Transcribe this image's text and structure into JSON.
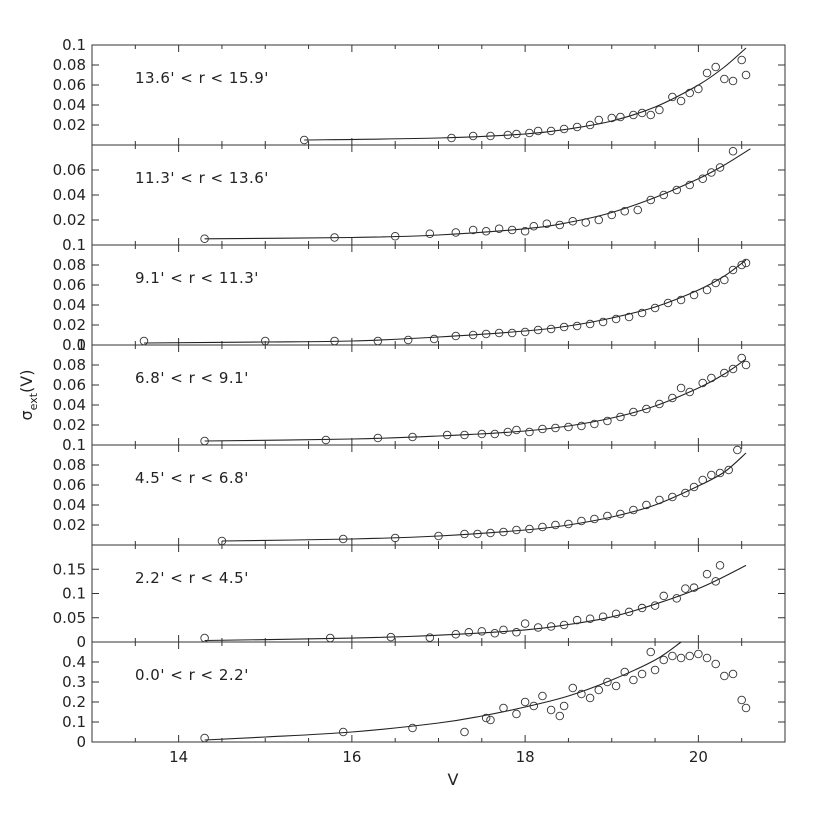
{
  "chart_data": {
    "type": "scatter",
    "xlabel": "V",
    "ylabel": "σ_ext(V)",
    "ylabel_main": "σ",
    "ylabel_sub": "ext",
    "ylabel_tail": "(V)",
    "xlim": [
      13,
      21
    ],
    "xticks": [
      14,
      16,
      18,
      20
    ],
    "panels": [
      {
        "label": "13.6' < r < 15.9'",
        "ylim": [
          0,
          0.1
        ],
        "yticks": [
          0.02,
          0.04,
          0.06,
          0.08,
          0.1
        ],
        "ytick_labels": [
          "0.02",
          "0.04",
          "0.06",
          "0.08",
          "0.1"
        ],
        "curve": [
          [
            15.45,
            0.005
          ],
          [
            17,
            0.007
          ],
          [
            18,
            0.011
          ],
          [
            18.5,
            0.016
          ],
          [
            19,
            0.024
          ],
          [
            19.5,
            0.038
          ],
          [
            20,
            0.06
          ],
          [
            20.3,
            0.078
          ],
          [
            20.55,
            0.097
          ]
        ],
        "points": [
          [
            15.45,
            0.005
          ],
          [
            17.15,
            0.007
          ],
          [
            17.4,
            0.009
          ],
          [
            17.6,
            0.009
          ],
          [
            17.8,
            0.01
          ],
          [
            17.9,
            0.011
          ],
          [
            18.05,
            0.012
          ],
          [
            18.15,
            0.014
          ],
          [
            18.3,
            0.014
          ],
          [
            18.45,
            0.016
          ],
          [
            18.6,
            0.018
          ],
          [
            18.75,
            0.02
          ],
          [
            18.85,
            0.025
          ],
          [
            19.0,
            0.027
          ],
          [
            19.1,
            0.028
          ],
          [
            19.25,
            0.03
          ],
          [
            19.35,
            0.032
          ],
          [
            19.45,
            0.03
          ],
          [
            19.55,
            0.035
          ],
          [
            19.7,
            0.048
          ],
          [
            19.8,
            0.044
          ],
          [
            19.9,
            0.052
          ],
          [
            20.0,
            0.056
          ],
          [
            20.1,
            0.072
          ],
          [
            20.2,
            0.078
          ],
          [
            20.3,
            0.066
          ],
          [
            20.4,
            0.064
          ],
          [
            20.5,
            0.085
          ],
          [
            20.55,
            0.07
          ]
        ]
      },
      {
        "label": "11.3' < r < 13.6'",
        "ylim": [
          0,
          0.08
        ],
        "yticks": [
          0.02,
          0.04,
          0.06
        ],
        "ytick_labels": [
          "0.02",
          "0.04",
          "0.06"
        ],
        "curve": [
          [
            14.3,
            0.005
          ],
          [
            16,
            0.006
          ],
          [
            17,
            0.008
          ],
          [
            18,
            0.013
          ],
          [
            18.5,
            0.018
          ],
          [
            19,
            0.026
          ],
          [
            19.5,
            0.038
          ],
          [
            20,
            0.053
          ],
          [
            20.3,
            0.064
          ],
          [
            20.6,
            0.077
          ]
        ],
        "points": [
          [
            14.3,
            0.005
          ],
          [
            15.8,
            0.006
          ],
          [
            16.5,
            0.007
          ],
          [
            16.9,
            0.009
          ],
          [
            17.2,
            0.01
          ],
          [
            17.4,
            0.012
          ],
          [
            17.55,
            0.011
          ],
          [
            17.7,
            0.013
          ],
          [
            17.85,
            0.012
          ],
          [
            18.0,
            0.011
          ],
          [
            18.1,
            0.015
          ],
          [
            18.25,
            0.017
          ],
          [
            18.4,
            0.016
          ],
          [
            18.55,
            0.019
          ],
          [
            18.7,
            0.018
          ],
          [
            18.85,
            0.02
          ],
          [
            19.0,
            0.024
          ],
          [
            19.15,
            0.027
          ],
          [
            19.3,
            0.028
          ],
          [
            19.45,
            0.036
          ],
          [
            19.6,
            0.04
          ],
          [
            19.75,
            0.044
          ],
          [
            19.9,
            0.048
          ],
          [
            20.05,
            0.053
          ],
          [
            20.15,
            0.058
          ],
          [
            20.25,
            0.062
          ],
          [
            20.4,
            0.075
          ]
        ]
      },
      {
        "label": "9.1' < r < 11.3'",
        "ylim": [
          0,
          0.1
        ],
        "yticks": [
          0,
          0.02,
          0.04,
          0.06,
          0.08,
          0.1
        ],
        "ytick_labels": [
          "0",
          "0.02",
          "0.04",
          "0.06",
          "0.08",
          "0.1"
        ],
        "curve": [
          [
            13.6,
            0.002
          ],
          [
            15,
            0.003
          ],
          [
            16,
            0.004
          ],
          [
            17,
            0.008
          ],
          [
            18,
            0.014
          ],
          [
            18.5,
            0.019
          ],
          [
            19,
            0.027
          ],
          [
            19.5,
            0.038
          ],
          [
            20,
            0.055
          ],
          [
            20.3,
            0.069
          ],
          [
            20.55,
            0.085
          ]
        ],
        "points": [
          [
            13.6,
            0.002
          ],
          [
            15.0,
            0.003
          ],
          [
            15.8,
            0.003
          ],
          [
            16.3,
            0.004
          ],
          [
            16.65,
            0.005
          ],
          [
            16.95,
            0.006
          ],
          [
            17.2,
            0.009
          ],
          [
            17.4,
            0.01
          ],
          [
            17.55,
            0.011
          ],
          [
            17.7,
            0.012
          ],
          [
            17.85,
            0.012
          ],
          [
            18.0,
            0.013
          ],
          [
            18.15,
            0.015
          ],
          [
            18.3,
            0.016
          ],
          [
            18.45,
            0.018
          ],
          [
            18.6,
            0.019
          ],
          [
            18.75,
            0.021
          ],
          [
            18.9,
            0.023
          ],
          [
            19.05,
            0.026
          ],
          [
            19.2,
            0.028
          ],
          [
            19.35,
            0.032
          ],
          [
            19.5,
            0.037
          ],
          [
            19.65,
            0.042
          ],
          [
            19.8,
            0.045
          ],
          [
            19.95,
            0.05
          ],
          [
            20.1,
            0.055
          ],
          [
            20.2,
            0.062
          ],
          [
            20.3,
            0.065
          ],
          [
            20.4,
            0.075
          ],
          [
            20.5,
            0.08
          ],
          [
            20.55,
            0.082
          ]
        ]
      },
      {
        "label": "6.8' < r < 9.1'",
        "ylim": [
          0,
          0.1
        ],
        "yticks": [
          0.02,
          0.04,
          0.06,
          0.08,
          0.1
        ],
        "ytick_labels": [
          "0.02",
          "0.04",
          "0.06",
          "0.08",
          "0.1"
        ],
        "curve": [
          [
            14.3,
            0.004
          ],
          [
            16,
            0.006
          ],
          [
            17,
            0.009
          ],
          [
            18,
            0.014
          ],
          [
            18.5,
            0.019
          ],
          [
            19,
            0.027
          ],
          [
            19.5,
            0.039
          ],
          [
            20,
            0.057
          ],
          [
            20.3,
            0.071
          ],
          [
            20.55,
            0.086
          ]
        ],
        "points": [
          [
            14.3,
            0.004
          ],
          [
            15.7,
            0.005
          ],
          [
            16.3,
            0.007
          ],
          [
            16.7,
            0.008
          ],
          [
            17.1,
            0.01
          ],
          [
            17.3,
            0.01
          ],
          [
            17.5,
            0.011
          ],
          [
            17.65,
            0.011
          ],
          [
            17.8,
            0.013
          ],
          [
            17.9,
            0.015
          ],
          [
            18.05,
            0.013
          ],
          [
            18.2,
            0.016
          ],
          [
            18.35,
            0.017
          ],
          [
            18.5,
            0.018
          ],
          [
            18.65,
            0.019
          ],
          [
            18.8,
            0.021
          ],
          [
            18.95,
            0.024
          ],
          [
            19.1,
            0.028
          ],
          [
            19.25,
            0.033
          ],
          [
            19.4,
            0.036
          ],
          [
            19.55,
            0.041
          ],
          [
            19.7,
            0.047
          ],
          [
            19.8,
            0.057
          ],
          [
            19.9,
            0.053
          ],
          [
            20.05,
            0.062
          ],
          [
            20.15,
            0.067
          ],
          [
            20.3,
            0.072
          ],
          [
            20.4,
            0.076
          ],
          [
            20.5,
            0.087
          ],
          [
            20.55,
            0.08
          ]
        ]
      },
      {
        "label": "4.5' < r < 6.8'",
        "ylim": [
          0,
          0.1
        ],
        "yticks": [
          0.02,
          0.04,
          0.06,
          0.08,
          0.1
        ],
        "ytick_labels": [
          "0.02",
          "0.04",
          "0.06",
          "0.08",
          "0.1"
        ],
        "curve": [
          [
            14.5,
            0.004
          ],
          [
            16,
            0.006
          ],
          [
            17,
            0.009
          ],
          [
            18,
            0.015
          ],
          [
            18.5,
            0.02
          ],
          [
            19,
            0.028
          ],
          [
            19.5,
            0.04
          ],
          [
            20,
            0.059
          ],
          [
            20.3,
            0.073
          ],
          [
            20.55,
            0.092
          ]
        ],
        "points": [
          [
            14.5,
            0.004
          ],
          [
            15.9,
            0.006
          ],
          [
            16.5,
            0.007
          ],
          [
            17.0,
            0.009
          ],
          [
            17.3,
            0.011
          ],
          [
            17.45,
            0.011
          ],
          [
            17.6,
            0.012
          ],
          [
            17.75,
            0.013
          ],
          [
            17.9,
            0.015
          ],
          [
            18.05,
            0.016
          ],
          [
            18.2,
            0.018
          ],
          [
            18.35,
            0.02
          ],
          [
            18.5,
            0.021
          ],
          [
            18.65,
            0.024
          ],
          [
            18.8,
            0.026
          ],
          [
            18.95,
            0.029
          ],
          [
            19.1,
            0.031
          ],
          [
            19.25,
            0.035
          ],
          [
            19.4,
            0.04
          ],
          [
            19.55,
            0.045
          ],
          [
            19.7,
            0.048
          ],
          [
            19.85,
            0.052
          ],
          [
            19.95,
            0.058
          ],
          [
            20.05,
            0.065
          ],
          [
            20.15,
            0.07
          ],
          [
            20.25,
            0.072
          ],
          [
            20.35,
            0.075
          ],
          [
            20.45,
            0.095
          ]
        ]
      },
      {
        "label": "2.2' < r < 4.5'",
        "ylim": [
          0,
          0.2
        ],
        "yticks": [
          0,
          0.05,
          0.1,
          0.15
        ],
        "ytick_labels": [
          "0",
          "0.05",
          "0.1",
          "0.15"
        ],
        "curve": [
          [
            14.3,
            0.003
          ],
          [
            16,
            0.008
          ],
          [
            17,
            0.014
          ],
          [
            18,
            0.025
          ],
          [
            18.5,
            0.036
          ],
          [
            19,
            0.052
          ],
          [
            19.5,
            0.078
          ],
          [
            20,
            0.11
          ],
          [
            20.3,
            0.135
          ],
          [
            20.55,
            0.158
          ]
        ],
        "points": [
          [
            14.3,
            0.004
          ],
          [
            15.75,
            0.007
          ],
          [
            16.45,
            0.01
          ],
          [
            16.9,
            0.009
          ],
          [
            17.2,
            0.016
          ],
          [
            17.35,
            0.02
          ],
          [
            17.5,
            0.022
          ],
          [
            17.65,
            0.018
          ],
          [
            17.75,
            0.025
          ],
          [
            17.9,
            0.02
          ],
          [
            18.0,
            0.038
          ],
          [
            18.15,
            0.03
          ],
          [
            18.3,
            0.032
          ],
          [
            18.45,
            0.035
          ],
          [
            18.6,
            0.045
          ],
          [
            18.75,
            0.048
          ],
          [
            18.9,
            0.052
          ],
          [
            19.05,
            0.058
          ],
          [
            19.2,
            0.062
          ],
          [
            19.35,
            0.07
          ],
          [
            19.5,
            0.075
          ],
          [
            19.6,
            0.095
          ],
          [
            19.75,
            0.09
          ],
          [
            19.85,
            0.11
          ],
          [
            19.95,
            0.112
          ],
          [
            20.1,
            0.14
          ],
          [
            20.2,
            0.125
          ],
          [
            20.25,
            0.158
          ]
        ]
      },
      {
        "label": "0.0' < r < 2.2'",
        "ylim": [
          0,
          0.5
        ],
        "yticks": [
          0,
          0.1,
          0.2,
          0.3,
          0.4
        ],
        "ytick_labels": [
          "0",
          "0.1",
          "0.2",
          "0.3",
          "0.4"
        ],
        "curve": [
          [
            14.3,
            0.01
          ],
          [
            15,
            0.025
          ],
          [
            16,
            0.05
          ],
          [
            17,
            0.095
          ],
          [
            17.5,
            0.13
          ],
          [
            18,
            0.175
          ],
          [
            18.5,
            0.23
          ],
          [
            19,
            0.31
          ],
          [
            19.5,
            0.41
          ],
          [
            19.8,
            0.5
          ]
        ],
        "points": [
          [
            14.3,
            0.01
          ],
          [
            15.9,
            0.05
          ],
          [
            16.7,
            0.07
          ],
          [
            17.3,
            0.05
          ],
          [
            17.55,
            0.12
          ],
          [
            17.6,
            0.11
          ],
          [
            17.75,
            0.17
          ],
          [
            17.9,
            0.14
          ],
          [
            18.0,
            0.2
          ],
          [
            18.1,
            0.18
          ],
          [
            18.2,
            0.23
          ],
          [
            18.3,
            0.16
          ],
          [
            18.4,
            0.13
          ],
          [
            18.45,
            0.18
          ],
          [
            18.55,
            0.27
          ],
          [
            18.65,
            0.24
          ],
          [
            18.75,
            0.22
          ],
          [
            18.85,
            0.26
          ],
          [
            18.95,
            0.3
          ],
          [
            19.05,
            0.28
          ],
          [
            19.15,
            0.35
          ],
          [
            19.25,
            0.31
          ],
          [
            19.35,
            0.34
          ],
          [
            19.45,
            0.45
          ],
          [
            19.5,
            0.36
          ],
          [
            19.6,
            0.41
          ],
          [
            19.7,
            0.43
          ],
          [
            19.8,
            0.42
          ],
          [
            19.9,
            0.43
          ],
          [
            20.0,
            0.44
          ],
          [
            20.1,
            0.42
          ],
          [
            20.2,
            0.39
          ],
          [
            20.3,
            0.33
          ],
          [
            20.4,
            0.34
          ],
          [
            20.5,
            0.21
          ],
          [
            20.55,
            0.17
          ]
        ]
      }
    ]
  }
}
